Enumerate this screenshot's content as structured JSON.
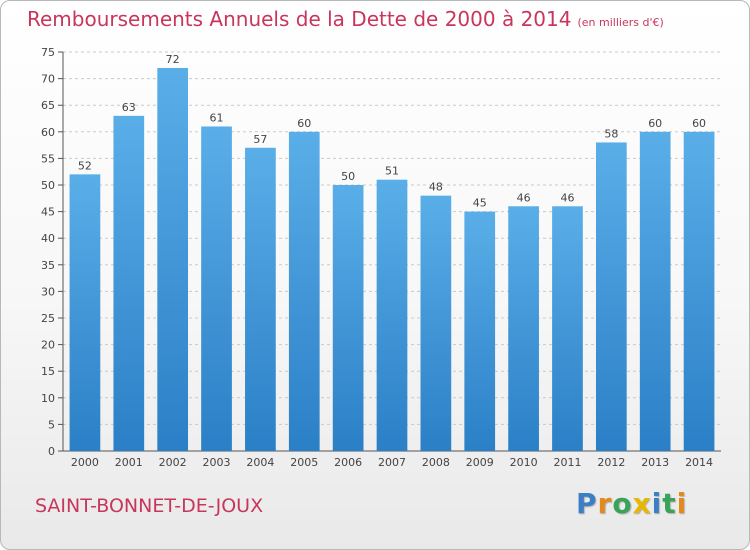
{
  "chart_data": {
    "type": "bar",
    "title": "Remboursements Annuels de la Dette de 2000 à 2014",
    "subtitle": "(en milliers d'€)",
    "categories": [
      "2000",
      "2001",
      "2002",
      "2003",
      "2004",
      "2005",
      "2006",
      "2007",
      "2008",
      "2009",
      "2010",
      "2011",
      "2012",
      "2013",
      "2014"
    ],
    "values": [
      52,
      63,
      72,
      61,
      57,
      60,
      50,
      51,
      48,
      45,
      46,
      46,
      58,
      60,
      60
    ],
    "ylim": [
      0,
      75
    ],
    "yticks": [
      0,
      5,
      10,
      15,
      20,
      25,
      30,
      35,
      40,
      45,
      50,
      55,
      60,
      65,
      70,
      75
    ],
    "grid": true,
    "xlabel": "",
    "ylabel": "",
    "colors": {
      "bar_light": "#5aaee8",
      "bar_dark": "#2b7fc6",
      "title": "#c8365c"
    }
  },
  "footer": {
    "city": "SAINT-BONNET-DE-JOUX",
    "logo": {
      "text": "Proxiti",
      "letters": [
        "P",
        "r",
        "o",
        "x",
        "i",
        "t",
        "i"
      ],
      "colors": [
        "#3b7fc4",
        "#e38a1e",
        "#3aa35a",
        "#e6b800",
        "#3b7fc4",
        "#3aa35a",
        "#e38a1e"
      ]
    }
  }
}
